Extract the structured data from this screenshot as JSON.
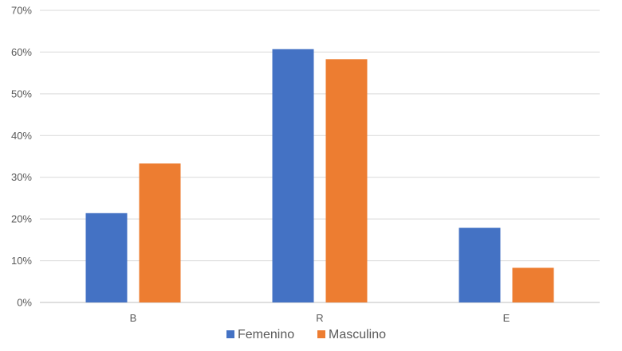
{
  "chart_data": {
    "type": "bar",
    "categories": [
      "B",
      "R",
      "E"
    ],
    "series": [
      {
        "name": "Femenino",
        "values": [
          21.4,
          60.7,
          17.9
        ],
        "color": "#4472c4"
      },
      {
        "name": "Masculino",
        "values": [
          33.3,
          58.3,
          8.3
        ],
        "color": "#ed7d31"
      }
    ],
    "ylim": [
      0,
      70
    ],
    "yticks": [
      "0%",
      "10%",
      "20%",
      "30%",
      "40%",
      "50%",
      "60%",
      "70%"
    ],
    "ytick_values": [
      0,
      10,
      20,
      30,
      40,
      50,
      60,
      70
    ],
    "grid": true,
    "legend_position": "bottom",
    "title": "",
    "xlabel": "",
    "ylabel": "",
    "gridline_color": "#d9d9d9",
    "axis_color": "#bfbfbf"
  }
}
